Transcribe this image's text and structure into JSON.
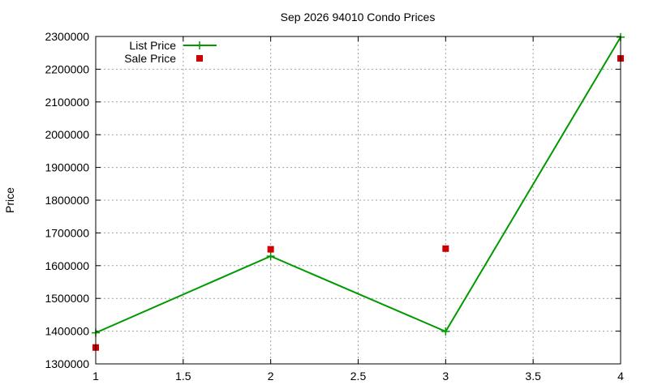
{
  "chart_data": {
    "type": "line",
    "title": "Sep 2026 94010 Condo Prices",
    "xlabel": "",
    "ylabel": "Price",
    "xlim": [
      1,
      4
    ],
    "ylim": [
      1300000,
      2300000
    ],
    "x_ticks": [
      "1",
      "1.5",
      "2",
      "2.5",
      "3",
      "3.5",
      "4"
    ],
    "y_ticks": [
      "1300000",
      "1400000",
      "1500000",
      "1600000",
      "1700000",
      "1800000",
      "1900000",
      "2000000",
      "2100000",
      "2200000",
      "2300000"
    ],
    "grid": true,
    "legend_position": "top-left",
    "series": [
      {
        "name": "List Price",
        "style": "lines-points",
        "marker": "plus",
        "color": "#009900",
        "x": [
          1,
          2,
          3,
          4
        ],
        "y": [
          1395000,
          1629000,
          1399000,
          2298000
        ]
      },
      {
        "name": "Sale Price",
        "style": "points",
        "marker": "square",
        "color": "#cc0000",
        "x": [
          1,
          2,
          3,
          4
        ],
        "y": [
          1350000,
          1650000,
          1652000,
          2233000
        ]
      }
    ]
  }
}
